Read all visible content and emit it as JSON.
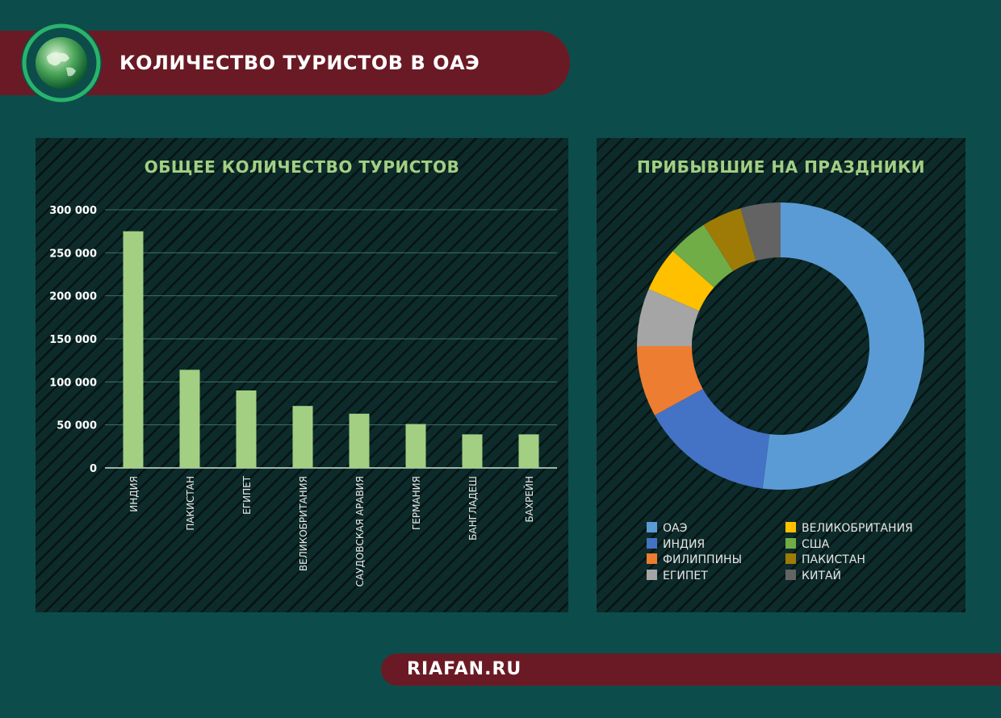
{
  "header": {
    "title": "КОЛИЧЕСТВО ТУРИСТОВ В ОАЭ",
    "logo_icon": "globe-icon"
  },
  "footer": {
    "site": "RIAFAN.RU"
  },
  "colors": {
    "background": "#0c4d4b",
    "banner": "#6a1a25",
    "bar": "#a3cf83",
    "title_green": "#a3cf83"
  },
  "chart_data": [
    {
      "type": "bar",
      "title": "ОБЩЕЕ КОЛИЧЕСТВО ТУРИСТОВ",
      "categories": [
        "ИНДИЯ",
        "ПАКИСТАН",
        "ЕГИПЕТ",
        "ВЕЛИКОБРИТАНИЯ",
        "САУДОВСКАЯ АРАВИЯ",
        "ГЕРМАНИЯ",
        "БАНГЛАДЕШ",
        "БАХРЕЙН"
      ],
      "values": [
        275000,
        114000,
        90000,
        72000,
        63000,
        51000,
        39000,
        39000
      ],
      "ylim": [
        0,
        300000
      ],
      "yticks": [
        0,
        50000,
        100000,
        150000,
        200000,
        250000,
        300000
      ],
      "ytick_labels": [
        "0",
        "50 000",
        "100 000",
        "150 000",
        "200 000",
        "250 000",
        "300 000"
      ],
      "grid": true,
      "xlabel": "",
      "ylabel": ""
    },
    {
      "type": "pie",
      "title": "ПРИБЫВШИЕ НА ПРАЗДНИКИ",
      "donut": true,
      "labels": [
        "ОАЭ",
        "ИНДИЯ",
        "ФИЛИППИНЫ",
        "ЕГИПЕТ",
        "ВЕЛИКОБРИТАНИЯ",
        "США",
        "ПАКИСТАН",
        "КИТАЙ"
      ],
      "values": [
        52,
        15,
        8,
        6.5,
        5,
        4.5,
        4.5,
        4.5
      ],
      "colors": [
        "#5b9bd5",
        "#4472c4",
        "#ed7d31",
        "#a5a5a5",
        "#ffc000",
        "#70ad47",
        "#9e7b06",
        "#636363"
      ],
      "legend_position": "bottom"
    }
  ]
}
